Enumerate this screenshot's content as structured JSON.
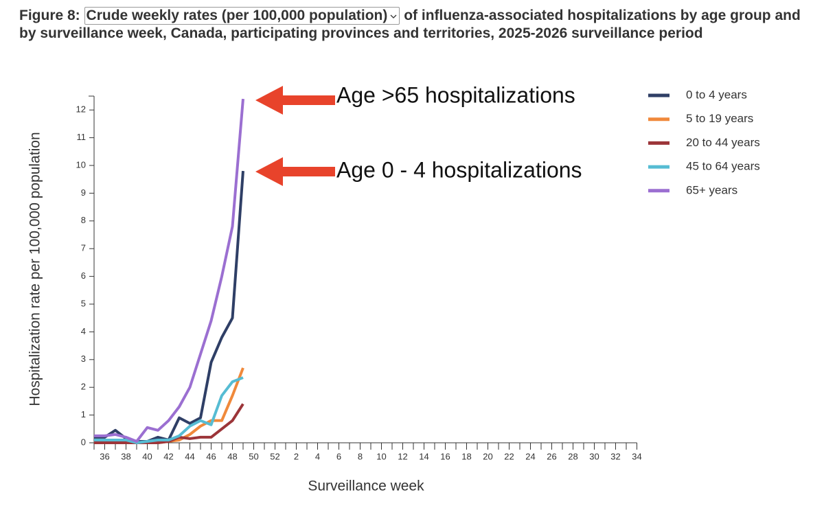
{
  "title_prefix": "Figure 8:",
  "measure_select": "Crude weekly rates (per 100,000 population)",
  "title_suffix": "of influenza-associated hospitalizations by age group and by surveillance week, Canada, participating provinces and territories, 2025-2026 surveillance period",
  "chart_data": {
    "type": "line",
    "y_label": "Hospitalization rate per 100,000 population",
    "x_label": "Surveillance week",
    "annotations": [
      "Age >65 hospitalizations",
      "Age 0 - 4 hospitalizations"
    ],
    "categories": [
      null,
      "36",
      null,
      "38",
      null,
      "40",
      null,
      "42",
      null,
      "44",
      null,
      "46",
      null,
      "48",
      null,
      "50",
      null,
      "52",
      null,
      "2",
      null,
      "4",
      null,
      "6",
      null,
      "8",
      null,
      "10",
      null,
      "12",
      null,
      "14",
      null,
      "16",
      null,
      "18",
      null,
      "20",
      null,
      "22",
      null,
      "24",
      null,
      "26",
      null,
      "28",
      null,
      "30",
      null,
      "32",
      null,
      "34"
    ],
    "ylim": [
      0,
      12.5
    ],
    "yticks": [
      0,
      1,
      2,
      3,
      4,
      5,
      6,
      7,
      8,
      9,
      10,
      11,
      12
    ],
    "series": [
      {
        "name": "0 to 4 years",
        "color": "#2f3f66",
        "values": [
          0.2,
          0.2,
          0.45,
          0.15,
          0.05,
          0.05,
          0.2,
          0.1,
          0.9,
          0.7,
          0.9,
          2.9,
          3.8,
          4.5,
          9.8,
          null,
          null,
          null,
          null,
          null,
          null,
          null,
          null,
          null,
          null,
          null,
          null,
          null,
          null,
          null,
          null,
          null,
          null,
          null,
          null,
          null,
          null,
          null,
          null,
          null,
          null,
          null,
          null,
          null,
          null,
          null,
          null,
          null,
          null,
          null,
          null,
          null
        ]
      },
      {
        "name": "5 to 19 years",
        "color": "#f0893b",
        "values": [
          0.05,
          0,
          0,
          0,
          0,
          0,
          0,
          0.05,
          0.1,
          0.3,
          0.6,
          0.8,
          0.8,
          1.7,
          2.7,
          null,
          null,
          null,
          null,
          null,
          null,
          null,
          null,
          null,
          null,
          null,
          null,
          null,
          null,
          null,
          null,
          null,
          null,
          null,
          null,
          null,
          null,
          null,
          null,
          null,
          null,
          null,
          null,
          null,
          null,
          null,
          null,
          null,
          null,
          null,
          null,
          null
        ]
      },
      {
        "name": "20 to 44 years",
        "color": "#9c3539",
        "values": [
          0,
          0,
          0,
          0,
          0,
          0,
          0,
          0.05,
          0.2,
          0.15,
          0.2,
          0.2,
          0.5,
          0.8,
          1.4,
          null,
          null,
          null,
          null,
          null,
          null,
          null,
          null,
          null,
          null,
          null,
          null,
          null,
          null,
          null,
          null,
          null,
          null,
          null,
          null,
          null,
          null,
          null,
          null,
          null,
          null,
          null,
          null,
          null,
          null,
          null,
          null,
          null,
          null,
          null,
          null,
          null
        ]
      },
      {
        "name": "45 to 64 years",
        "color": "#56bcd3",
        "values": [
          0.1,
          0.1,
          0.1,
          0.1,
          0,
          0.05,
          0.1,
          0.1,
          0.25,
          0.6,
          0.8,
          0.65,
          1.7,
          2.2,
          2.35,
          null,
          null,
          null,
          null,
          null,
          null,
          null,
          null,
          null,
          null,
          null,
          null,
          null,
          null,
          null,
          null,
          null,
          null,
          null,
          null,
          null,
          null,
          null,
          null,
          null,
          null,
          null,
          null,
          null,
          null,
          null,
          null,
          null,
          null,
          null,
          null,
          null
        ]
      },
      {
        "name": "65+ years",
        "color": "#9b6fd1",
        "values": [
          0.25,
          0.25,
          0.3,
          0.2,
          0.05,
          0.55,
          0.45,
          0.8,
          1.3,
          2.0,
          3.2,
          4.4,
          6.0,
          7.8,
          12.4,
          null,
          null,
          null,
          null,
          null,
          null,
          null,
          null,
          null,
          null,
          null,
          null,
          null,
          null,
          null,
          null,
          null,
          null,
          null,
          null,
          null,
          null,
          null,
          null,
          null,
          null,
          null,
          null,
          null,
          null,
          null,
          null,
          null,
          null,
          null,
          null,
          null
        ]
      }
    ]
  }
}
